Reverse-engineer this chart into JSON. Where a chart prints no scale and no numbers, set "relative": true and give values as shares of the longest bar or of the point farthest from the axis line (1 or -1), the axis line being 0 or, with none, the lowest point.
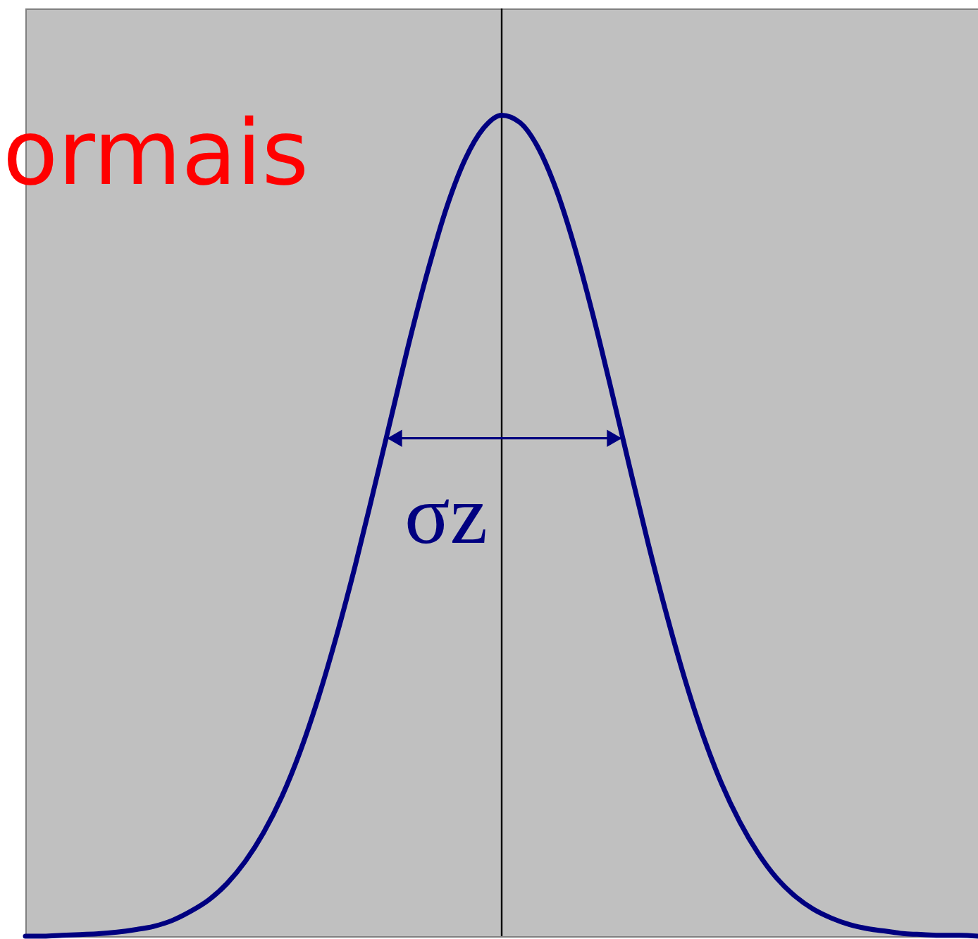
{
  "chart_data": {
    "type": "line",
    "title": "ormais",
    "relative": true,
    "color": "#000080",
    "categories": [
      null,
      null,
      null,
      null,
      null,
      null,
      null,
      null,
      null,
      null,
      null,
      null,
      null,
      null,
      null,
      null,
      null,
      null,
      null,
      null,
      null,
      null,
      null,
      null,
      null,
      null,
      null,
      null,
      null,
      null,
      null,
      null,
      null,
      null,
      null,
      null,
      null,
      null,
      null,
      null,
      null,
      null,
      null,
      null,
      null,
      null,
      null,
      null,
      null,
      null,
      null,
      null,
      null
    ],
    "values": [
      0,
      0,
      0.001,
      0.002,
      0.003,
      0.005,
      0.008,
      0.012,
      0.019,
      0.03,
      0.044,
      0.064,
      0.091,
      0.126,
      0.17,
      0.225,
      0.291,
      0.367,
      0.451,
      0.542,
      0.635,
      0.728,
      0.813,
      0.888,
      0.946,
      0.984,
      1.0,
      0.991,
      0.96,
      0.908,
      0.838,
      0.755,
      0.664,
      0.57,
      0.478,
      0.392,
      0.313,
      0.244,
      0.186,
      0.139,
      0.101,
      0.071,
      0.049,
      0.033,
      0.022,
      0.014,
      0.009,
      0.006,
      0.003,
      0.002,
      0.001,
      0.001,
      0
    ],
    "annotations": [
      "σz"
    ]
  }
}
